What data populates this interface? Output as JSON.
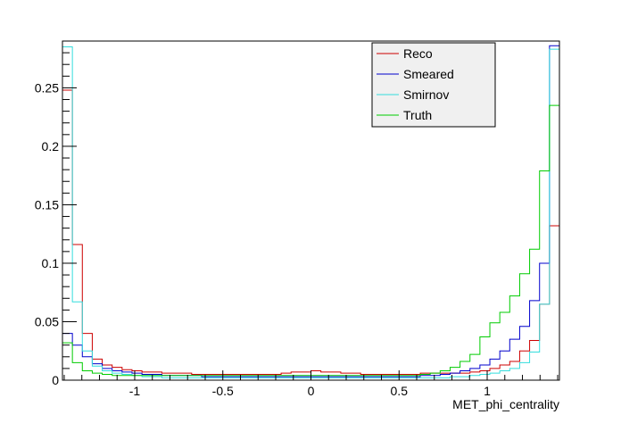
{
  "chart_data": {
    "type": "line",
    "style": "step-histogram",
    "xlabel": "MET_phi_centrality",
    "ylabel": "",
    "xlim": [
      -1.41,
      1.41
    ],
    "ylim": [
      0,
      0.29
    ],
    "grid": false,
    "legend_position": "top-right",
    "x_ticks": [
      {
        "value": -1,
        "label": "-1"
      },
      {
        "value": -0.5,
        "label": "-0.5"
      },
      {
        "value": 0,
        "label": "0"
      },
      {
        "value": 0.5,
        "label": "0.5"
      },
      {
        "value": 1,
        "label": "1"
      }
    ],
    "y_ticks": [
      {
        "value": 0,
        "label": "0"
      },
      {
        "value": 0.05,
        "label": "0.05"
      },
      {
        "value": 0.1,
        "label": "0.1"
      },
      {
        "value": 0.15,
        "label": "0.15"
      },
      {
        "value": 0.2,
        "label": "0.2"
      },
      {
        "value": 0.25,
        "label": "0.25"
      }
    ],
    "bins": 50,
    "series": [
      {
        "name": "Reco",
        "color": "#cc0000",
        "values": [
          0.248,
          0.116,
          0.04,
          0.018,
          0.013,
          0.011,
          0.009,
          0.008,
          0.007,
          0.007,
          0.006,
          0.006,
          0.006,
          0.005,
          0.005,
          0.005,
          0.005,
          0.005,
          0.005,
          0.005,
          0.005,
          0.005,
          0.006,
          0.007,
          0.007,
          0.008,
          0.007,
          0.007,
          0.006,
          0.006,
          0.005,
          0.005,
          0.005,
          0.005,
          0.005,
          0.005,
          0.006,
          0.006,
          0.006,
          0.006,
          0.006,
          0.007,
          0.008,
          0.01,
          0.013,
          0.016,
          0.025,
          0.034,
          0.065,
          0.132
        ]
      },
      {
        "name": "Smeared",
        "color": "#0000cc",
        "values": [
          0.04,
          0.03,
          0.02,
          0.014,
          0.01,
          0.008,
          0.007,
          0.006,
          0.005,
          0.005,
          0.004,
          0.004,
          0.004,
          0.004,
          0.003,
          0.003,
          0.003,
          0.003,
          0.003,
          0.003,
          0.003,
          0.003,
          0.003,
          0.003,
          0.003,
          0.003,
          0.003,
          0.003,
          0.003,
          0.003,
          0.003,
          0.003,
          0.003,
          0.003,
          0.003,
          0.003,
          0.004,
          0.004,
          0.005,
          0.006,
          0.008,
          0.01,
          0.013,
          0.018,
          0.025,
          0.035,
          0.046,
          0.068,
          0.1,
          0.286
        ]
      },
      {
        "name": "Smirnov",
        "color": "#33dddd",
        "values": [
          0.285,
          0.067,
          0.025,
          0.012,
          0.008,
          0.006,
          0.005,
          0.004,
          0.003,
          0.003,
          0.002,
          0.002,
          0.002,
          0.002,
          0.002,
          0.002,
          0.002,
          0.002,
          0.002,
          0.002,
          0.002,
          0.002,
          0.002,
          0.002,
          0.002,
          0.002,
          0.002,
          0.002,
          0.002,
          0.002,
          0.002,
          0.002,
          0.002,
          0.002,
          0.002,
          0.002,
          0.002,
          0.002,
          0.002,
          0.003,
          0.003,
          0.004,
          0.005,
          0.006,
          0.008,
          0.01,
          0.015,
          0.024,
          0.065,
          0.283
        ]
      },
      {
        "name": "Truth",
        "color": "#00cc00",
        "values": [
          0.032,
          0.015,
          0.008,
          0.006,
          0.005,
          0.004,
          0.004,
          0.004,
          0.004,
          0.004,
          0.004,
          0.004,
          0.004,
          0.004,
          0.004,
          0.004,
          0.004,
          0.004,
          0.004,
          0.004,
          0.004,
          0.004,
          0.004,
          0.004,
          0.004,
          0.004,
          0.004,
          0.004,
          0.004,
          0.004,
          0.004,
          0.004,
          0.004,
          0.004,
          0.004,
          0.004,
          0.005,
          0.006,
          0.008,
          0.011,
          0.016,
          0.022,
          0.037,
          0.049,
          0.058,
          0.072,
          0.091,
          0.112,
          0.179,
          0.235
        ]
      }
    ]
  }
}
